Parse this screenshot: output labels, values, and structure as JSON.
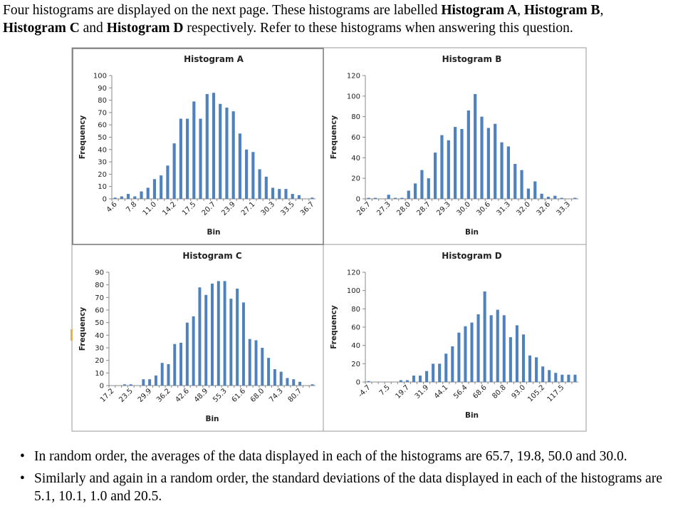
{
  "intro": {
    "part1": "Four histograms are displayed on the next page. These histograms are labelled ",
    "hA": "Histogram A",
    "sep1": ", ",
    "hB": "Histogram B",
    "sep2": ",",
    "hC": "Histogram C",
    "sep3": " and ",
    "hD": "Histogram D",
    "part2": " respectively. Refer to these histograms when answering this question."
  },
  "bullets": [
    "In random order, the averages of the data displayed in each of the histograms are 65.7, 19.8, 50.0 and 30.0.",
    "Similarly and again in a random order, the standard deviations of the data displayed in each of the histograms are 5.1, 10.1, 1.0 and 20.5."
  ],
  "colors": {
    "bar": "#4F81BD",
    "frame": "#888888",
    "axis": "#888888"
  },
  "chart_data": [
    {
      "type": "bar",
      "title": "Histogram A",
      "xlabel": "Bin",
      "ylabel": "Frequency",
      "ylim": [
        0,
        100
      ],
      "yticks": [
        0,
        10,
        20,
        30,
        40,
        50,
        60,
        70,
        80,
        90,
        100
      ],
      "tick_labels": [
        "4.6",
        "7.8",
        "11.0",
        "14.2",
        "17.5",
        "20.7",
        "23.9",
        "27.1",
        "30.3",
        "33.5",
        "36.7"
      ],
      "tick_every": 3,
      "values": [
        1,
        2,
        4,
        2,
        6,
        9,
        16,
        19,
        27,
        45,
        65,
        65,
        79,
        65,
        85,
        86,
        77,
        74,
        71,
        53,
        40,
        38,
        24,
        18,
        9,
        8,
        8,
        4,
        3,
        0,
        1
      ]
    },
    {
      "type": "bar",
      "title": "Histogram B",
      "xlabel": "Bin",
      "ylabel": "Frequency",
      "ylim": [
        0,
        120
      ],
      "yticks": [
        0,
        20,
        40,
        60,
        80,
        100,
        120
      ],
      "tick_labels": [
        "26.7",
        "27.3",
        "28.0",
        "28.7",
        "29.3",
        "30.0",
        "30.6",
        "31.3",
        "32.0",
        "32.6",
        "33.3"
      ],
      "tick_every": 3,
      "values": [
        1,
        1,
        0,
        4,
        1,
        1,
        8,
        15,
        28,
        20,
        45,
        62,
        57,
        70,
        68,
        86,
        102,
        80,
        69,
        73,
        55,
        51,
        34,
        28,
        10,
        17,
        5,
        2,
        3,
        1,
        0,
        1
      ]
    },
    {
      "type": "bar",
      "title": "Histogram C",
      "xlabel": "Bin",
      "ylabel": "Frequency",
      "ylim": [
        0,
        90
      ],
      "yticks": [
        0,
        10,
        20,
        30,
        40,
        50,
        60,
        70,
        80,
        90
      ],
      "tick_labels": [
        "17.2",
        "23.5",
        "29.9",
        "36.2",
        "42.6",
        "48.9",
        "55.3",
        "61.6",
        "68.0",
        "74.3",
        "80.7"
      ],
      "tick_every": 3,
      "values": [
        0,
        0,
        1,
        1,
        0,
        5,
        5,
        8,
        18,
        17,
        33,
        34,
        50,
        55,
        78,
        72,
        81,
        83,
        83,
        69,
        77,
        66,
        37,
        36,
        30,
        22,
        13,
        11,
        6,
        5,
        3,
        0,
        1
      ]
    },
    {
      "type": "bar",
      "title": "Histogram D",
      "xlabel": "Bin",
      "ylabel": "Frequency",
      "ylim": [
        0,
        120
      ],
      "yticks": [
        0,
        20,
        40,
        60,
        80,
        100,
        120
      ],
      "tick_labels": [
        "-4.7",
        "7.5",
        "19.7",
        "31.9",
        "44.1",
        "56.4",
        "68.6",
        "80.8",
        "93.0",
        "105.2",
        "117.5"
      ],
      "tick_every": 3,
      "values": [
        1,
        0,
        0,
        0,
        0,
        2,
        2,
        7,
        7,
        12,
        20,
        20,
        31,
        39,
        54,
        61,
        65,
        74,
        99,
        73,
        79,
        73,
        49,
        62,
        52,
        29,
        27,
        17,
        13,
        10,
        8,
        8,
        8
      ]
    }
  ]
}
